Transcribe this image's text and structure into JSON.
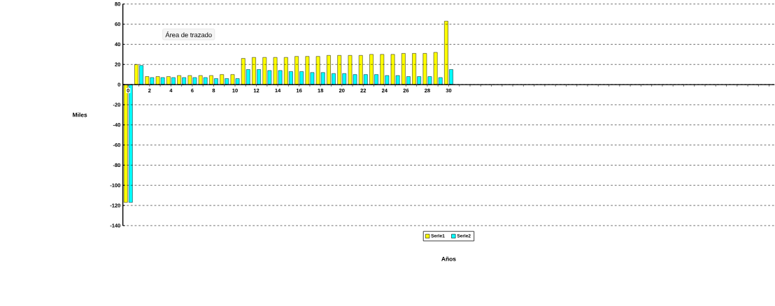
{
  "chart_data": {
    "type": "bar",
    "categories": [
      "0",
      null,
      "2",
      null,
      "4",
      null,
      "6",
      null,
      "8",
      null,
      "10",
      null,
      "12",
      null,
      "14",
      null,
      "16",
      null,
      "18",
      null,
      "20",
      null,
      "22",
      null,
      "24",
      null,
      "26",
      null,
      "28",
      null,
      "30",
      null,
      null,
      null,
      null,
      null,
      null,
      null,
      null,
      null,
      null,
      null,
      null,
      null,
      null,
      null,
      null,
      null,
      null,
      null,
      null,
      null,
      null,
      null,
      null,
      null,
      null,
      null,
      null,
      null,
      null
    ],
    "series": [
      {
        "name": "Serie1",
        "color": "#ffff00",
        "values": [
          -117,
          20,
          8,
          8,
          8,
          9,
          9,
          9,
          9,
          10,
          10,
          26,
          27,
          27,
          27,
          27,
          28,
          28,
          28,
          29,
          29,
          29,
          29,
          30,
          30,
          30,
          31,
          31,
          31,
          32,
          63,
          null,
          null,
          null,
          null,
          null,
          null,
          null,
          null,
          null,
          null,
          null,
          null,
          null,
          null,
          null,
          null,
          null,
          null,
          null,
          null,
          null,
          null,
          null,
          null,
          null,
          null,
          null,
          null,
          null,
          null
        ]
      },
      {
        "name": "Serie2",
        "color": "#00ffff",
        "values": [
          -117,
          19,
          7,
          7,
          7,
          7,
          7,
          7,
          6,
          6,
          6,
          15,
          15,
          14,
          14,
          13,
          13,
          12,
          12,
          11,
          11,
          10,
          10,
          10,
          9,
          9,
          8,
          8,
          8,
          7,
          15,
          null,
          null,
          null,
          null,
          null,
          null,
          null,
          null,
          null,
          null,
          null,
          null,
          null,
          null,
          null,
          null,
          null,
          null,
          null,
          null,
          null,
          null,
          null,
          null,
          null,
          null,
          null,
          null,
          null,
          null
        ]
      }
    ],
    "xlabel": "Años",
    "ylabel": "Miles",
    "ylim": [
      -140,
      80
    ],
    "yticks": [
      -140,
      -120,
      -100,
      -80,
      -60,
      -40,
      -20,
      0,
      20,
      40,
      60,
      80
    ],
    "grid": "y",
    "legend": "bottom",
    "annotations": [
      "Área de trazado"
    ]
  }
}
